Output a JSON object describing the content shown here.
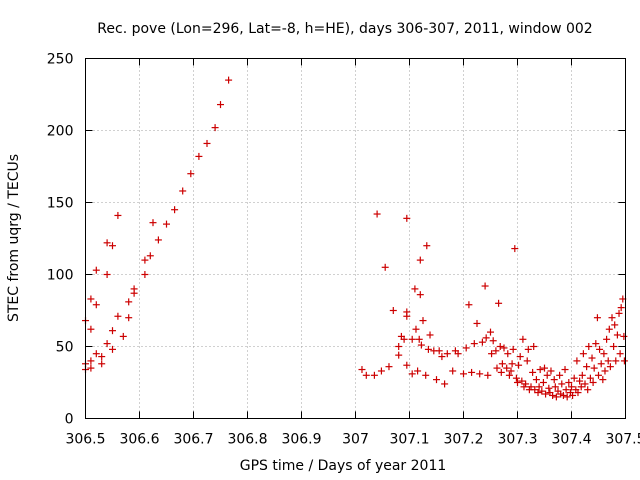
{
  "chart_data": {
    "type": "scatter",
    "title": "Rec. pove (Lon=296, Lat=-8, h=HE), days 306-307, 2011, window 002",
    "xlabel": "GPS time / Days of year 2011",
    "ylabel": "STEC from uqrg / TECUs",
    "xlim": [
      306.5,
      307.5
    ],
    "ylim": [
      0,
      250
    ],
    "xticks": [
      306.5,
      306.6,
      306.7,
      306.8,
      306.9,
      307,
      307.1,
      307.2,
      307.3,
      307.4,
      307.5
    ],
    "xtick_labels": [
      "306.5",
      "306.6",
      "306.7",
      "306.8",
      "306.9",
      "307",
      "307.1",
      "307.2",
      "307.3",
      "307.4",
      "307.5"
    ],
    "yticks": [
      0,
      50,
      100,
      150,
      200,
      250
    ],
    "ytick_labels": [
      "0",
      "50",
      "100",
      "150",
      "200",
      "250"
    ],
    "grid": true,
    "marker": "plus",
    "color": "#cc0000",
    "points": [
      [
        306.5,
        68
      ],
      [
        306.5,
        38
      ],
      [
        306.5,
        34
      ],
      [
        306.51,
        62
      ],
      [
        306.51,
        83
      ],
      [
        306.51,
        35
      ],
      [
        306.51,
        40
      ],
      [
        306.52,
        45
      ],
      [
        306.52,
        79
      ],
      [
        306.52,
        103
      ],
      [
        306.53,
        38
      ],
      [
        306.53,
        43
      ],
      [
        306.54,
        100
      ],
      [
        306.54,
        122
      ],
      [
        306.54,
        52
      ],
      [
        306.55,
        61
      ],
      [
        306.55,
        48
      ],
      [
        306.55,
        120
      ],
      [
        306.56,
        141
      ],
      [
        306.56,
        71
      ],
      [
        306.57,
        57
      ],
      [
        306.58,
        81
      ],
      [
        306.58,
        70
      ],
      [
        306.59,
        87
      ],
      [
        306.59,
        90
      ],
      [
        306.61,
        100
      ],
      [
        306.61,
        110
      ],
      [
        306.62,
        113
      ],
      [
        306.625,
        136
      ],
      [
        306.635,
        124
      ],
      [
        306.65,
        135
      ],
      [
        306.665,
        145
      ],
      [
        306.68,
        158
      ],
      [
        306.695,
        170
      ],
      [
        306.71,
        182
      ],
      [
        306.725,
        191
      ],
      [
        306.74,
        202
      ],
      [
        306.75,
        218
      ],
      [
        306.765,
        235
      ],
      [
        307.012,
        34
      ],
      [
        307.02,
        30
      ],
      [
        307.035,
        30
      ],
      [
        307.04,
        142
      ],
      [
        307.048,
        33
      ],
      [
        307.055,
        105
      ],
      [
        307.062,
        36
      ],
      [
        307.07,
        75
      ],
      [
        307.08,
        44
      ],
      [
        307.08,
        50
      ],
      [
        307.085,
        57
      ],
      [
        307.09,
        55
      ],
      [
        307.095,
        139
      ],
      [
        307.095,
        74
      ],
      [
        307.095,
        71
      ],
      [
        307.095,
        37
      ],
      [
        307.105,
        55
      ],
      [
        307.105,
        31
      ],
      [
        307.11,
        90
      ],
      [
        307.112,
        62
      ],
      [
        307.115,
        33
      ],
      [
        307.118,
        55
      ],
      [
        307.12,
        110
      ],
      [
        307.12,
        86
      ],
      [
        307.122,
        51
      ],
      [
        307.125,
        68
      ],
      [
        307.13,
        30
      ],
      [
        307.132,
        120
      ],
      [
        307.135,
        48
      ],
      [
        307.138,
        58
      ],
      [
        307.145,
        47
      ],
      [
        307.15,
        27
      ],
      [
        307.155,
        47
      ],
      [
        307.16,
        43
      ],
      [
        307.165,
        24
      ],
      [
        307.17,
        45
      ],
      [
        307.18,
        33
      ],
      [
        307.185,
        47
      ],
      [
        307.19,
        45
      ],
      [
        307.2,
        31
      ],
      [
        307.205,
        49
      ],
      [
        307.21,
        79
      ],
      [
        307.215,
        32
      ],
      [
        307.22,
        52
      ],
      [
        307.225,
        66
      ],
      [
        307.23,
        31
      ],
      [
        307.235,
        53
      ],
      [
        307.24,
        92
      ],
      [
        307.242,
        56
      ],
      [
        307.245,
        30
      ],
      [
        307.25,
        60
      ],
      [
        307.252,
        45
      ],
      [
        307.255,
        54
      ],
      [
        307.26,
        47
      ],
      [
        307.262,
        35
      ],
      [
        307.265,
        80
      ],
      [
        307.268,
        50
      ],
      [
        307.27,
        32
      ],
      [
        307.272,
        38
      ],
      [
        307.275,
        49
      ],
      [
        307.28,
        35
      ],
      [
        307.282,
        45
      ],
      [
        307.285,
        30
      ],
      [
        307.288,
        33
      ],
      [
        307.29,
        38
      ],
      [
        307.292,
        48
      ],
      [
        307.295,
        118
      ],
      [
        307.298,
        28
      ],
      [
        307.3,
        25
      ],
      [
        307.302,
        37
      ],
      [
        307.305,
        43
      ],
      [
        307.308,
        26
      ],
      [
        307.31,
        55
      ],
      [
        307.312,
        22
      ],
      [
        307.315,
        24
      ],
      [
        307.318,
        40
      ],
      [
        307.32,
        48
      ],
      [
        307.322,
        20
      ],
      [
        307.325,
        22
      ],
      [
        307.328,
        32
      ],
      [
        307.33,
        50
      ],
      [
        307.332,
        20
      ],
      [
        307.335,
        27
      ],
      [
        307.338,
        18
      ],
      [
        307.34,
        22
      ],
      [
        307.342,
        34
      ],
      [
        307.345,
        19
      ],
      [
        307.348,
        25
      ],
      [
        307.35,
        35
      ],
      [
        307.352,
        17
      ],
      [
        307.355,
        30
      ],
      [
        307.358,
        21
      ],
      [
        307.36,
        18
      ],
      [
        307.362,
        33
      ],
      [
        307.365,
        16
      ],
      [
        307.368,
        27
      ],
      [
        307.37,
        22
      ],
      [
        307.372,
        15
      ],
      [
        307.375,
        19
      ],
      [
        307.378,
        30
      ],
      [
        307.38,
        17
      ],
      [
        307.382,
        24
      ],
      [
        307.385,
        16
      ],
      [
        307.388,
        34
      ],
      [
        307.39,
        20
      ],
      [
        307.392,
        15
      ],
      [
        307.395,
        25
      ],
      [
        307.398,
        18
      ],
      [
        307.4,
        22
      ],
      [
        307.402,
        16
      ],
      [
        307.405,
        28
      ],
      [
        307.408,
        20
      ],
      [
        307.41,
        40
      ],
      [
        307.412,
        18
      ],
      [
        307.415,
        26
      ],
      [
        307.418,
        22
      ],
      [
        307.42,
        30
      ],
      [
        307.422,
        45
      ],
      [
        307.425,
        24
      ],
      [
        307.428,
        36
      ],
      [
        307.43,
        20
      ],
      [
        307.432,
        50
      ],
      [
        307.435,
        28
      ],
      [
        307.438,
        42
      ],
      [
        307.44,
        25
      ],
      [
        307.442,
        35
      ],
      [
        307.445,
        52
      ],
      [
        307.448,
        70
      ],
      [
        307.45,
        30
      ],
      [
        307.452,
        48
      ],
      [
        307.455,
        38
      ],
      [
        307.458,
        27
      ],
      [
        307.46,
        45
      ],
      [
        307.462,
        33
      ],
      [
        307.465,
        55
      ],
      [
        307.468,
        40
      ],
      [
        307.47,
        62
      ],
      [
        307.472,
        36
      ],
      [
        307.475,
        70
      ],
      [
        307.478,
        50
      ],
      [
        307.48,
        65
      ],
      [
        307.482,
        40
      ],
      [
        307.485,
        58
      ],
      [
        307.488,
        73
      ],
      [
        307.49,
        45
      ],
      [
        307.492,
        77
      ],
      [
        307.495,
        83
      ],
      [
        307.497,
        57
      ],
      [
        307.498,
        40
      ]
    ]
  }
}
